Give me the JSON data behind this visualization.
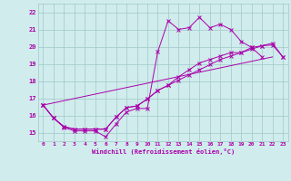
{
  "bg_color": "#d0ecec",
  "grid_color": "#a0c8c8",
  "line_color": "#aa00aa",
  "xlabel": "Windchill (Refroidissement éolien,°C)",
  "xlim": [
    -0.5,
    23.5
  ],
  "ylim": [
    14.5,
    22.5
  ],
  "yticks": [
    15,
    16,
    17,
    18,
    19,
    20,
    21,
    22
  ],
  "xticks": [
    0,
    1,
    2,
    3,
    4,
    5,
    6,
    7,
    8,
    9,
    10,
    11,
    12,
    13,
    14,
    15,
    16,
    17,
    18,
    19,
    20,
    21,
    22,
    23
  ],
  "line1_x": [
    0,
    1,
    2,
    3,
    4,
    5,
    6,
    7,
    8,
    9,
    10,
    11,
    12,
    13,
    14,
    15,
    16,
    17,
    18,
    19,
    20,
    21
  ],
  "line1_y": [
    16.6,
    15.85,
    15.3,
    15.1,
    15.1,
    15.1,
    14.75,
    15.5,
    16.2,
    16.4,
    16.4,
    19.7,
    21.5,
    21.0,
    21.1,
    21.7,
    21.1,
    21.3,
    21.0,
    20.3,
    19.95,
    19.4
  ],
  "line2_x": [
    0,
    22
  ],
  "line2_y": [
    16.6,
    19.4
  ],
  "line3_x": [
    0,
    1,
    2,
    3,
    4,
    5,
    6,
    7,
    8,
    9,
    10,
    11,
    12,
    13,
    14,
    15,
    16,
    17,
    18,
    19,
    20,
    21,
    22,
    23
  ],
  "line3_y": [
    16.6,
    15.85,
    15.35,
    15.2,
    15.2,
    15.2,
    15.2,
    15.9,
    16.45,
    16.55,
    16.95,
    17.45,
    17.75,
    18.05,
    18.35,
    18.65,
    18.95,
    19.25,
    19.45,
    19.65,
    19.85,
    20.05,
    20.2,
    19.4
  ],
  "line4_x": [
    0,
    1,
    2,
    3,
    4,
    5,
    6,
    7,
    8,
    9,
    10,
    11,
    12,
    13,
    14,
    15,
    16,
    17,
    18,
    19,
    20,
    21,
    22,
    23
  ],
  "line4_y": [
    16.6,
    15.85,
    15.35,
    15.2,
    15.2,
    15.2,
    15.2,
    15.9,
    16.45,
    16.55,
    16.95,
    17.45,
    17.75,
    18.25,
    18.65,
    19.05,
    19.25,
    19.45,
    19.65,
    19.65,
    19.95,
    20.05,
    20.1,
    19.4
  ]
}
